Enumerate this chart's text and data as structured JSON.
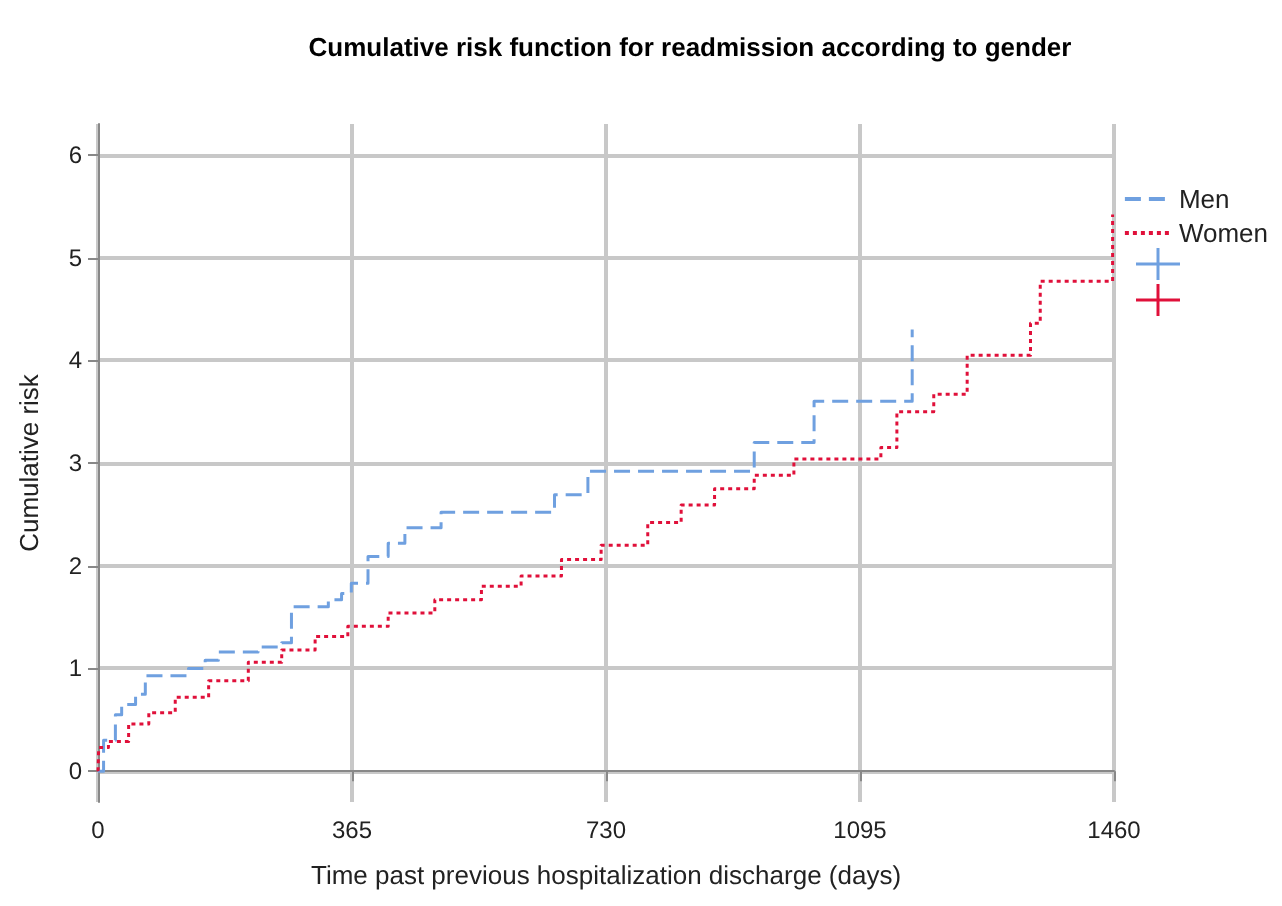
{
  "chart_data": {
    "type": "step",
    "title": "Cumulative risk function for readmission according to gender",
    "xlabel": "Time past previous hospitalization discharge (days)",
    "ylabel": "Cumulative risk",
    "xlim": [
      0,
      1460
    ],
    "xticks": [
      0,
      365,
      730,
      1095,
      1460
    ],
    "ylim": [
      -0.3,
      6.3
    ],
    "yticks": [
      0,
      1,
      2,
      3,
      4,
      5,
      6
    ],
    "grid": true,
    "legend": "top right",
    "series": [
      {
        "name": "Men",
        "color": "#6fa0e0",
        "line_style": "dashed",
        "x": [
          0,
          8,
          25,
          34,
          54,
          68,
          130,
          154,
          173,
          230,
          264,
          278,
          331,
          350,
          364,
          388,
          417,
          441,
          493,
          656,
          704,
          943,
          1029,
          1170
        ],
        "values": [
          0,
          0.3,
          0.55,
          0.65,
          0.75,
          0.93,
          1.0,
          1.08,
          1.16,
          1.21,
          1.25,
          1.6,
          1.67,
          1.73,
          1.83,
          2.09,
          2.22,
          2.37,
          2.52,
          2.69,
          2.92,
          3.2,
          3.6,
          4.3
        ]
      },
      {
        "name": "Women",
        "color": "#e0103a",
        "line_style": "dotted",
        "x": [
          0,
          1,
          15,
          44,
          73,
          111,
          159,
          216,
          264,
          312,
          359,
          417,
          484,
          551,
          608,
          666,
          723,
          790,
          838,
          886,
          943,
          1000,
          1125,
          1148,
          1201,
          1249,
          1340,
          1354,
          1458
        ],
        "values": [
          0,
          0.23,
          0.29,
          0.46,
          0.57,
          0.72,
          0.88,
          1.06,
          1.18,
          1.31,
          1.41,
          1.54,
          1.67,
          1.8,
          1.9,
          2.06,
          2.2,
          2.42,
          2.59,
          2.75,
          2.88,
          3.04,
          3.15,
          3.5,
          3.67,
          4.05,
          4.36,
          4.77,
          5.42
        ]
      }
    ]
  }
}
